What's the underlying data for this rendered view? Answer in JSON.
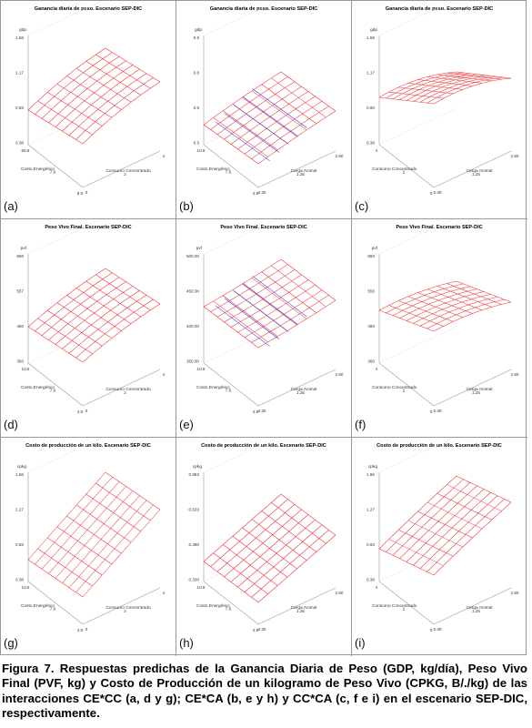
{
  "figure": {
    "panels": [
      {
        "letter": "(a)",
        "title": "Ganancia diaria de peso. Escenario SEP-DIC",
        "zlabel": "gdp",
        "zticks": [
          "1.58",
          "1.17",
          "0.83",
          "0.38"
        ],
        "xlabel": "Costo Energético",
        "xticks": [
          "65.8",
          "7.6",
          "8.6"
        ],
        "ylabel": "Consumo Concentrado",
        "yticks": [
          "0",
          "2",
          "4"
        ]
      },
      {
        "letter": "(b)",
        "title": "Ganancia diaria de peso. Escenario SEP-DIC",
        "zlabel": "gdp",
        "zticks": [
          "0.9",
          "0.8",
          "0.6",
          "0.5"
        ],
        "xlabel": "Costo Energético",
        "xticks": [
          "10.6",
          "7.6",
          "4.6"
        ],
        "ylabel": "Carga Animal",
        "yticks": [
          "0.30",
          "1.25",
          "2.60"
        ]
      },
      {
        "letter": "(c)",
        "title": "Ganancia diaria de peso. Escenario SEP-DIC",
        "zlabel": "gdp",
        "zticks": [
          "1.58",
          "1.17",
          "0.80",
          "0.38"
        ],
        "xlabel": "Consumo Concentrado",
        "xticks": [
          "4",
          "2",
          "0"
        ],
        "ylabel": "Carga Animal",
        "yticks": [
          "0.30",
          "1.25",
          "2.50"
        ]
      },
      {
        "letter": "(d)",
        "title": "Peso Vivo Final. Escenario SEP-DIC",
        "zlabel": "pvf",
        "zticks": [
          "650",
          "557",
          "460",
          "360"
        ],
        "xlabel": "Costo Energético",
        "xticks": [
          "10.6",
          "7.6",
          "4.6"
        ],
        "ylabel": "Consumo Concentrado",
        "yticks": [
          "0",
          "2",
          "4"
        ]
      },
      {
        "letter": "(e)",
        "title": "Peso Vivo Final. Escenario SEP-DIC",
        "zlabel": "pvf",
        "zticks": [
          "500.00",
          "450.00",
          "400.00",
          "350.00"
        ],
        "xlabel": "Costo Energético",
        "xticks": [
          "10.6",
          "7.6",
          "4.6"
        ],
        "ylabel": "Carga Animal",
        "yticks": [
          "0.30",
          "1.25",
          "2.50"
        ]
      },
      {
        "letter": "(f)",
        "title": "Peso Vivo Final. Escenario SEP-DIC",
        "zlabel": "pvf",
        "zticks": [
          "650",
          "550",
          "460",
          "360"
        ],
        "xlabel": "Consumo Concentrado",
        "xticks": [
          "4",
          "2",
          "0"
        ],
        "ylabel": "Carga Animal",
        "yticks": [
          "0.30",
          "1.25",
          "2.50"
        ]
      },
      {
        "letter": "(g)",
        "title": "Costo de producción de un kilo. Escenario SEP-DIC",
        "zlabel": "cpkg",
        "zticks": [
          "1.66",
          "1.27",
          "0.83",
          "0.38"
        ],
        "xlabel": "Costo Energético",
        "xticks": [
          "10.6",
          "7.6",
          "4.6"
        ],
        "ylabel": "Consumo Concentrado",
        "yticks": [
          "0",
          "2",
          "4"
        ]
      },
      {
        "letter": "(h)",
        "title": "Costo de producción de un kilo. Escenario SEP-DIC",
        "zlabel": "cpkg",
        "zticks": [
          "0.882",
          "0.633",
          "0.480",
          "0.330"
        ],
        "xlabel": "Costo Energético",
        "xticks": [
          "10.6",
          "7.6",
          "4.6"
        ],
        "ylabel": "Carga Animal",
        "yticks": [
          "0.30",
          "1.25",
          "2.50"
        ]
      },
      {
        "letter": "(i)",
        "title": "Costo de producción de un kilo. Escenario SEP-DIC",
        "zlabel": "cpkg",
        "zticks": [
          "1.66",
          "1.27",
          "0.83",
          "0.38"
        ],
        "xlabel": "Consumo Concentrado",
        "xticks": [
          "4",
          "2",
          "0"
        ],
        "ylabel": "Carga Animal",
        "yticks": [
          "0.30",
          "1.25",
          "2.50"
        ]
      }
    ],
    "caption": "Figura 7. Respuestas predichas de la Ganancia Diaria de Peso (GDP, kg/día), Peso Vivo Final (PVF, kg) y Costo de Producción de un kilogramo de Peso Vivo (CPKG, B/./kg) de las interacciones CE*CC (a, d y g); CE*CA (b, e y h) y CC*CA (c, f e i) en el escenario SEP-DIC, respectivamente."
  }
}
